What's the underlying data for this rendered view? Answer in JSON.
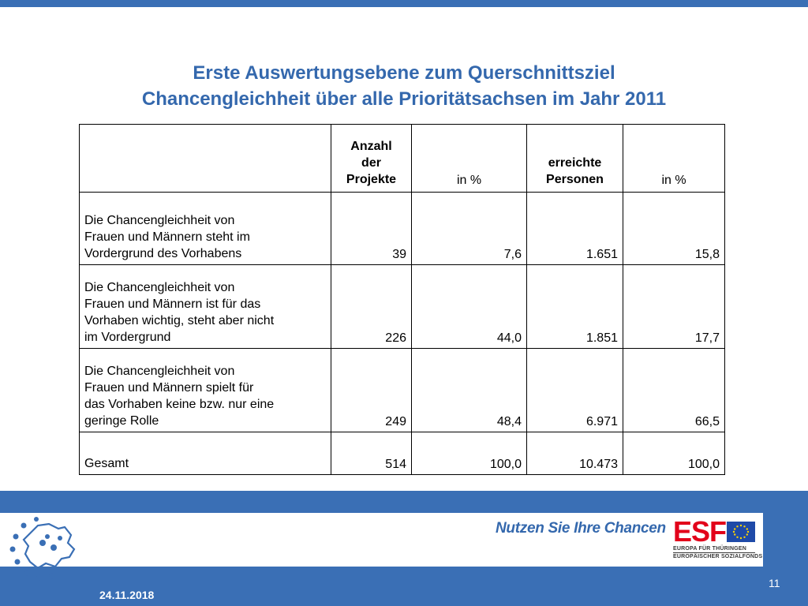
{
  "title": {
    "line1": "Erste Auswertungsebene zum Querschnittsziel",
    "line2": "Chancengleichheit über alle Prioritätsachsen im Jahr 2011"
  },
  "table": {
    "headers": {
      "col0": "",
      "col1": [
        "Anzahl",
        "der",
        "Projekte"
      ],
      "col2": "in  %",
      "col3": [
        "erreichte",
        "Personen"
      ],
      "col4": "in %"
    },
    "rows": [
      {
        "label": [
          "Die Chancengleichheit von",
          "Frauen und Männern steht im",
          "Vordergrund des Vorhabens"
        ],
        "projekte": "39",
        "projekte_pct": "7,6",
        "personen": "1.651",
        "personen_pct": "15,8"
      },
      {
        "label": [
          "Die Chancengleichheit von",
          "Frauen und Männern ist für das",
          "Vorhaben wichtig, steht aber nicht",
          "im Vordergrund"
        ],
        "projekte": "226",
        "projekte_pct": "44,0",
        "personen": "1.851",
        "personen_pct": "17,7"
      },
      {
        "label": [
          "Die Chancengleichheit von",
          "Frauen und Männern spielt für",
          "das Vorhaben keine bzw. nur eine",
          "geringe Rolle"
        ],
        "projekte": "249",
        "projekte_pct": "48,4",
        "personen": "6.971",
        "personen_pct": "66,5"
      },
      {
        "label": [
          "Gesamt"
        ],
        "projekte": "514",
        "projekte_pct": "100,0",
        "personen": "10.473",
        "personen_pct": "100,0"
      }
    ]
  },
  "footer": {
    "slogan": "Nutzen Sie Ihre Chancen",
    "esf_word": "ESF",
    "esf_line1": "EUROPA FÜR THÜRINGEN",
    "esf_line2": "EUROPÄISCHER SOZIALFONDS",
    "date": "24.11.2018",
    "page_number": "11"
  },
  "colors": {
    "accent_blue": "#3a6fb5",
    "title_blue": "#3468ad",
    "esf_red": "#e2001a"
  },
  "icons": {
    "map_logo": "thueringen-map-stars-icon",
    "eu_flag": "eu-flag-icon"
  }
}
